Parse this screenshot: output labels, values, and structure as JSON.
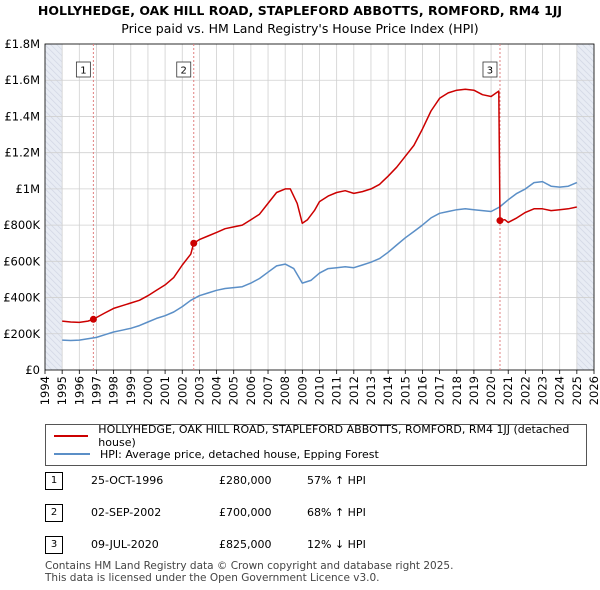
{
  "chart_data": {
    "type": "line",
    "title": "HOLLYHEDGE, OAK HILL ROAD, STAPLEFORD ABBOTTS, ROMFORD, RM4 1JJ",
    "subtitle": "Price paid vs. HM Land Registry's House Price Index (HPI)",
    "xlim": [
      1994,
      2026
    ],
    "ylim": [
      0,
      1800000
    ],
    "x_ticks": [
      "1994",
      "1995",
      "1996",
      "1997",
      "1998",
      "1999",
      "2000",
      "2001",
      "2002",
      "2003",
      "2004",
      "2005",
      "2006",
      "2007",
      "2008",
      "2009",
      "2010",
      "2011",
      "2012",
      "2013",
      "2014",
      "2015",
      "2016",
      "2017",
      "2018",
      "2019",
      "2020",
      "2021",
      "2022",
      "2023",
      "2024",
      "2025",
      "2026"
    ],
    "y_ticks": [
      {
        "value": 0,
        "label": "£0"
      },
      {
        "value": 200000,
        "label": "£200K"
      },
      {
        "value": 400000,
        "label": "£400K"
      },
      {
        "value": 600000,
        "label": "£600K"
      },
      {
        "value": 800000,
        "label": "£800K"
      },
      {
        "value": 1000000,
        "label": "£1M"
      },
      {
        "value": 1200000,
        "label": "£1.2M"
      },
      {
        "value": 1400000,
        "label": "£1.4M"
      },
      {
        "value": 1600000,
        "label": "£1.6M"
      },
      {
        "value": 1800000,
        "label": "£1.8M"
      }
    ],
    "grid": true,
    "data_span": [
      1995.0,
      2025.0
    ],
    "series": [
      {
        "name": "HOLLYHEDGE, OAK HILL ROAD, STAPLEFORD ABBOTTS, ROMFORD, RM4 1JJ (detached house)",
        "color": "#cc0000",
        "points": [
          [
            1995.0,
            270000
          ],
          [
            1995.5,
            265000
          ],
          [
            1996.0,
            263000
          ],
          [
            1996.5,
            270000
          ],
          [
            1996.82,
            280000
          ],
          [
            1997.0,
            290000
          ],
          [
            1997.5,
            315000
          ],
          [
            1998.0,
            340000
          ],
          [
            1998.5,
            355000
          ],
          [
            1999.0,
            370000
          ],
          [
            1999.5,
            385000
          ],
          [
            2000.0,
            410000
          ],
          [
            2000.5,
            440000
          ],
          [
            2001.0,
            470000
          ],
          [
            2001.5,
            510000
          ],
          [
            2002.0,
            580000
          ],
          [
            2002.5,
            640000
          ],
          [
            2002.67,
            700000
          ],
          [
            2003.0,
            720000
          ],
          [
            2003.5,
            740000
          ],
          [
            2004.0,
            760000
          ],
          [
            2004.5,
            780000
          ],
          [
            2005.0,
            790000
          ],
          [
            2005.5,
            800000
          ],
          [
            2006.0,
            830000
          ],
          [
            2006.5,
            860000
          ],
          [
            2007.0,
            920000
          ],
          [
            2007.5,
            980000
          ],
          [
            2008.0,
            1000000
          ],
          [
            2008.3,
            1000000
          ],
          [
            2008.7,
            920000
          ],
          [
            2009.0,
            810000
          ],
          [
            2009.3,
            830000
          ],
          [
            2009.7,
            880000
          ],
          [
            2010.0,
            930000
          ],
          [
            2010.5,
            960000
          ],
          [
            2011.0,
            980000
          ],
          [
            2011.5,
            990000
          ],
          [
            2012.0,
            975000
          ],
          [
            2012.5,
            985000
          ],
          [
            2013.0,
            1000000
          ],
          [
            2013.5,
            1025000
          ],
          [
            2014.0,
            1070000
          ],
          [
            2014.5,
            1120000
          ],
          [
            2015.0,
            1180000
          ],
          [
            2015.5,
            1240000
          ],
          [
            2016.0,
            1330000
          ],
          [
            2016.5,
            1430000
          ],
          [
            2017.0,
            1500000
          ],
          [
            2017.5,
            1530000
          ],
          [
            2018.0,
            1545000
          ],
          [
            2018.5,
            1550000
          ],
          [
            2019.0,
            1545000
          ],
          [
            2019.5,
            1520000
          ],
          [
            2020.0,
            1510000
          ],
          [
            2020.3,
            1530000
          ],
          [
            2020.45,
            1540000
          ],
          [
            2020.52,
            825000
          ],
          [
            2020.8,
            830000
          ],
          [
            2021.0,
            815000
          ],
          [
            2021.5,
            840000
          ],
          [
            2022.0,
            870000
          ],
          [
            2022.5,
            890000
          ],
          [
            2023.0,
            890000
          ],
          [
            2023.5,
            880000
          ],
          [
            2024.0,
            885000
          ],
          [
            2024.5,
            890000
          ],
          [
            2025.0,
            900000
          ]
        ]
      },
      {
        "name": "HPI: Average price, detached house, Epping Forest",
        "color": "#5b8fc7",
        "points": [
          [
            1995.0,
            165000
          ],
          [
            1995.5,
            163000
          ],
          [
            1996.0,
            165000
          ],
          [
            1996.5,
            172000
          ],
          [
            1997.0,
            180000
          ],
          [
            1997.5,
            195000
          ],
          [
            1998.0,
            210000
          ],
          [
            1998.5,
            220000
          ],
          [
            1999.0,
            230000
          ],
          [
            1999.5,
            245000
          ],
          [
            2000.0,
            265000
          ],
          [
            2000.5,
            285000
          ],
          [
            2001.0,
            300000
          ],
          [
            2001.5,
            320000
          ],
          [
            2002.0,
            350000
          ],
          [
            2002.5,
            385000
          ],
          [
            2003.0,
            410000
          ],
          [
            2003.5,
            425000
          ],
          [
            2004.0,
            440000
          ],
          [
            2004.5,
            450000
          ],
          [
            2005.0,
            455000
          ],
          [
            2005.5,
            460000
          ],
          [
            2006.0,
            480000
          ],
          [
            2006.5,
            505000
          ],
          [
            2007.0,
            540000
          ],
          [
            2007.5,
            575000
          ],
          [
            2008.0,
            585000
          ],
          [
            2008.5,
            560000
          ],
          [
            2009.0,
            480000
          ],
          [
            2009.5,
            495000
          ],
          [
            2010.0,
            535000
          ],
          [
            2010.5,
            560000
          ],
          [
            2011.0,
            565000
          ],
          [
            2011.5,
            570000
          ],
          [
            2012.0,
            565000
          ],
          [
            2012.5,
            580000
          ],
          [
            2013.0,
            595000
          ],
          [
            2013.5,
            615000
          ],
          [
            2014.0,
            650000
          ],
          [
            2014.5,
            690000
          ],
          [
            2015.0,
            730000
          ],
          [
            2015.5,
            765000
          ],
          [
            2016.0,
            800000
          ],
          [
            2016.5,
            840000
          ],
          [
            2017.0,
            865000
          ],
          [
            2017.5,
            875000
          ],
          [
            2018.0,
            885000
          ],
          [
            2018.5,
            890000
          ],
          [
            2019.0,
            885000
          ],
          [
            2019.5,
            880000
          ],
          [
            2020.0,
            875000
          ],
          [
            2020.5,
            900000
          ],
          [
            2021.0,
            940000
          ],
          [
            2021.5,
            975000
          ],
          [
            2022.0,
            1000000
          ],
          [
            2022.5,
            1035000
          ],
          [
            2023.0,
            1040000
          ],
          [
            2023.5,
            1015000
          ],
          [
            2024.0,
            1010000
          ],
          [
            2024.5,
            1015000
          ],
          [
            2025.0,
            1035000
          ]
        ]
      }
    ],
    "sales": [
      {
        "id": "1",
        "x": 1996.82,
        "value": 280000
      },
      {
        "id": "2",
        "x": 2002.67,
        "value": 700000
      },
      {
        "id": "3",
        "x": 2020.52,
        "value": 825000
      }
    ]
  },
  "legend": {
    "property_label": "HOLLYHEDGE, OAK HILL ROAD, STAPLEFORD ABBOTTS, ROMFORD, RM4 1JJ (detached house)",
    "hpi_label": "HPI: Average price, detached house, Epping Forest",
    "property_color": "#cc0000",
    "hpi_color": "#5b8fc7"
  },
  "sales_table": [
    {
      "id": "1",
      "date": "25-OCT-1996",
      "price": "£280,000",
      "hpi": "57% ↑ HPI"
    },
    {
      "id": "2",
      "date": "02-SEP-2002",
      "price": "£700,000",
      "hpi": "68% ↑ HPI"
    },
    {
      "id": "3",
      "date": "09-JUL-2020",
      "price": "£825,000",
      "hpi": "12% ↓ HPI"
    }
  ],
  "footer": {
    "line1": "Contains HM Land Registry data © Crown copyright and database right 2025.",
    "line2": "This data is licensed under the Open Government Licence v3.0."
  }
}
